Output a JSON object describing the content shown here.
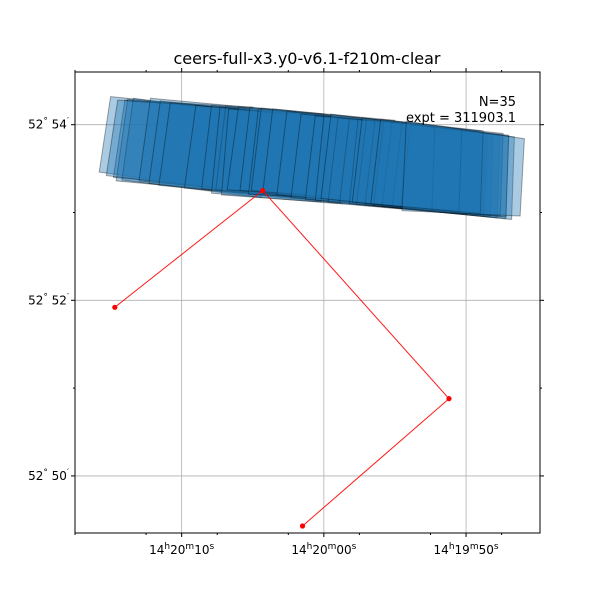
{
  "chart_data": {
    "type": "scatter",
    "title": "ceers-full-x3.y0-v6.1-f210m-clear",
    "annotations": {
      "n_label": "N=35",
      "expt_label": "expt = 311903.1"
    },
    "grid": true,
    "x_axis": {
      "ticks": [
        {
          "value": -10,
          "label_h": "14",
          "label_m": "20",
          "label_s": "10"
        },
        {
          "value": 0,
          "label_h": "14",
          "label_m": "20",
          "label_s": "00"
        },
        {
          "value": 10,
          "label_h": "14",
          "label_m": "19",
          "label_s": "50"
        }
      ],
      "minor_ticks": [
        -17.5,
        -12.5,
        -7.5,
        -2.5,
        2.5,
        7.5,
        12.5,
        17.5
      ],
      "lim": [
        -17.5,
        15.2
      ]
    },
    "y_axis": {
      "ticks": [
        {
          "value": 54,
          "label_deg": "52",
          "label_min": "54"
        },
        {
          "value": 52,
          "label_deg": "52",
          "label_min": "52"
        },
        {
          "value": 50,
          "label_deg": "52",
          "label_min": "50"
        }
      ],
      "minor_ticks": [
        53,
        51
      ],
      "lim": [
        49.35,
        54.6
      ]
    },
    "path": {
      "color": "#ff0000",
      "points": [
        [
          -14.7,
          51.92
        ],
        [
          -4.3,
          53.25
        ],
        [
          8.8,
          50.88
        ],
        [
          -1.5,
          49.43
        ]
      ]
    },
    "footprints": {
      "fill": "#1f77b4",
      "count": 35,
      "polygons": [
        [
          [
            -15.0,
            54.32
          ],
          [
            -6.7,
            54.18
          ],
          [
            -6.8,
            53.26
          ],
          [
            -15.8,
            53.46
          ]
        ],
        [
          [
            -14.0,
            54.28
          ],
          [
            -5.0,
            54.2
          ],
          [
            -5.1,
            53.26
          ],
          [
            -14.8,
            53.4
          ]
        ],
        [
          [
            -13.8,
            54.29
          ],
          [
            -4.0,
            54.12
          ],
          [
            -4.0,
            53.2
          ],
          [
            -14.6,
            53.36
          ]
        ],
        [
          [
            -13.4,
            54.3
          ],
          [
            -4.2,
            54.1
          ],
          [
            -4.4,
            53.17
          ],
          [
            -14.2,
            53.37
          ]
        ],
        [
          [
            -14.5,
            54.28
          ],
          [
            -5.5,
            54.18
          ],
          [
            -5.6,
            53.24
          ],
          [
            -15.3,
            53.42
          ]
        ],
        [
          [
            -12.2,
            54.3
          ],
          [
            -2.0,
            54.15
          ],
          [
            -2.2,
            53.2
          ],
          [
            -13.0,
            53.36
          ]
        ],
        [
          [
            -11.5,
            54.27
          ],
          [
            -1.0,
            54.1
          ],
          [
            -1.2,
            53.17
          ],
          [
            -12.3,
            53.33
          ]
        ],
        [
          [
            -10.8,
            54.25
          ],
          [
            -0.2,
            54.08
          ],
          [
            -0.4,
            53.14
          ],
          [
            -11.6,
            53.31
          ]
        ],
        [
          [
            -9.0,
            54.22
          ],
          [
            1.5,
            54.05
          ],
          [
            1.3,
            53.1
          ],
          [
            -9.8,
            53.28
          ]
        ],
        [
          [
            -7.9,
            54.22
          ],
          [
            2.2,
            54.06
          ],
          [
            2.0,
            53.11
          ],
          [
            -8.6,
            53.27
          ]
        ],
        [
          [
            -6.9,
            54.21
          ],
          [
            3.0,
            54.06
          ],
          [
            2.8,
            53.12
          ],
          [
            -7.6,
            53.26
          ]
        ],
        [
          [
            -7.3,
            54.2
          ],
          [
            1.2,
            54.05
          ],
          [
            1.0,
            53.1
          ],
          [
            -7.9,
            53.22
          ]
        ],
        [
          [
            -6.7,
            54.18
          ],
          [
            0.0,
            54.1
          ],
          [
            -0.2,
            53.12
          ],
          [
            -7.2,
            53.2
          ]
        ],
        [
          [
            -6.0,
            54.2
          ],
          [
            0.0,
            54.12
          ],
          [
            0.0,
            53.18
          ],
          [
            -6.8,
            53.26
          ]
        ],
        [
          [
            -5.2,
            54.2
          ],
          [
            0.6,
            54.1
          ],
          [
            0.4,
            53.18
          ],
          [
            -5.9,
            53.25
          ]
        ],
        [
          [
            -4.6,
            54.18
          ],
          [
            0.0,
            54.1
          ],
          [
            0.0,
            53.16
          ],
          [
            -5.3,
            53.21
          ]
        ],
        [
          [
            -4.4,
            54.19
          ],
          [
            5.0,
            54.05
          ],
          [
            4.8,
            53.11
          ],
          [
            -5.1,
            53.25
          ]
        ],
        [
          [
            -3.6,
            54.18
          ],
          [
            6.0,
            54.02
          ],
          [
            5.8,
            53.08
          ],
          [
            -4.3,
            53.22
          ]
        ],
        [
          [
            -2.6,
            54.15
          ],
          [
            7.0,
            54.01
          ],
          [
            6.8,
            53.06
          ],
          [
            -3.3,
            53.2
          ]
        ],
        [
          [
            -1.6,
            54.12
          ],
          [
            8.0,
            53.98
          ],
          [
            7.8,
            53.03
          ],
          [
            -2.3,
            53.17
          ]
        ],
        [
          [
            -0.6,
            54.1
          ],
          [
            9.0,
            53.95
          ],
          [
            8.8,
            53.0
          ],
          [
            -1.3,
            53.15
          ]
        ],
        [
          [
            0.0,
            54.1
          ],
          [
            9.8,
            53.93
          ],
          [
            9.6,
            52.99
          ],
          [
            -0.6,
            53.14
          ]
        ],
        [
          [
            1.0,
            54.08
          ],
          [
            10.7,
            53.92
          ],
          [
            10.5,
            52.98
          ],
          [
            0.3,
            53.12
          ]
        ],
        [
          [
            1.8,
            54.07
          ],
          [
            11.5,
            53.9
          ],
          [
            11.3,
            52.96
          ],
          [
            1.1,
            53.1
          ]
        ],
        [
          [
            2.4,
            54.06
          ],
          [
            11.0,
            53.93
          ],
          [
            10.8,
            52.99
          ],
          [
            1.8,
            53.1
          ]
        ],
        [
          [
            3.0,
            54.06
          ],
          [
            11.9,
            53.89
          ],
          [
            11.7,
            52.95
          ],
          [
            2.3,
            53.09
          ]
        ],
        [
          [
            3.6,
            54.05
          ],
          [
            12.4,
            53.88
          ],
          [
            12.2,
            52.94
          ],
          [
            2.9,
            53.09
          ]
        ],
        [
          [
            4.2,
            54.04
          ],
          [
            13.0,
            53.87
          ],
          [
            12.8,
            52.93
          ],
          [
            3.5,
            53.08
          ]
        ],
        [
          [
            4.8,
            54.03
          ],
          [
            13.4,
            53.86
          ],
          [
            13.2,
            52.92
          ],
          [
            4.1,
            53.07
          ]
        ],
        [
          [
            5.5,
            54.02
          ],
          [
            12.6,
            53.9
          ],
          [
            12.4,
            52.96
          ],
          [
            4.8,
            53.06
          ]
        ],
        [
          [
            6.1,
            54.0
          ],
          [
            13.0,
            53.88
          ],
          [
            12.8,
            52.95
          ],
          [
            5.4,
            53.05
          ]
        ],
        [
          [
            0.5,
            54.12
          ],
          [
            7.8,
            53.97
          ],
          [
            7.6,
            53.02
          ],
          [
            -0.2,
            53.16
          ]
        ],
        [
          [
            2.7,
            54.08
          ],
          [
            9.7,
            53.95
          ],
          [
            9.5,
            53.01
          ],
          [
            2.0,
            53.12
          ]
        ],
        [
          [
            4.0,
            54.06
          ],
          [
            11.2,
            53.93
          ],
          [
            11.0,
            52.99
          ],
          [
            3.3,
            53.1
          ]
        ],
        [
          [
            5.8,
            54.04
          ],
          [
            14.1,
            53.84
          ],
          [
            13.8,
            52.96
          ],
          [
            5.5,
            53.02
          ]
        ]
      ]
    }
  }
}
